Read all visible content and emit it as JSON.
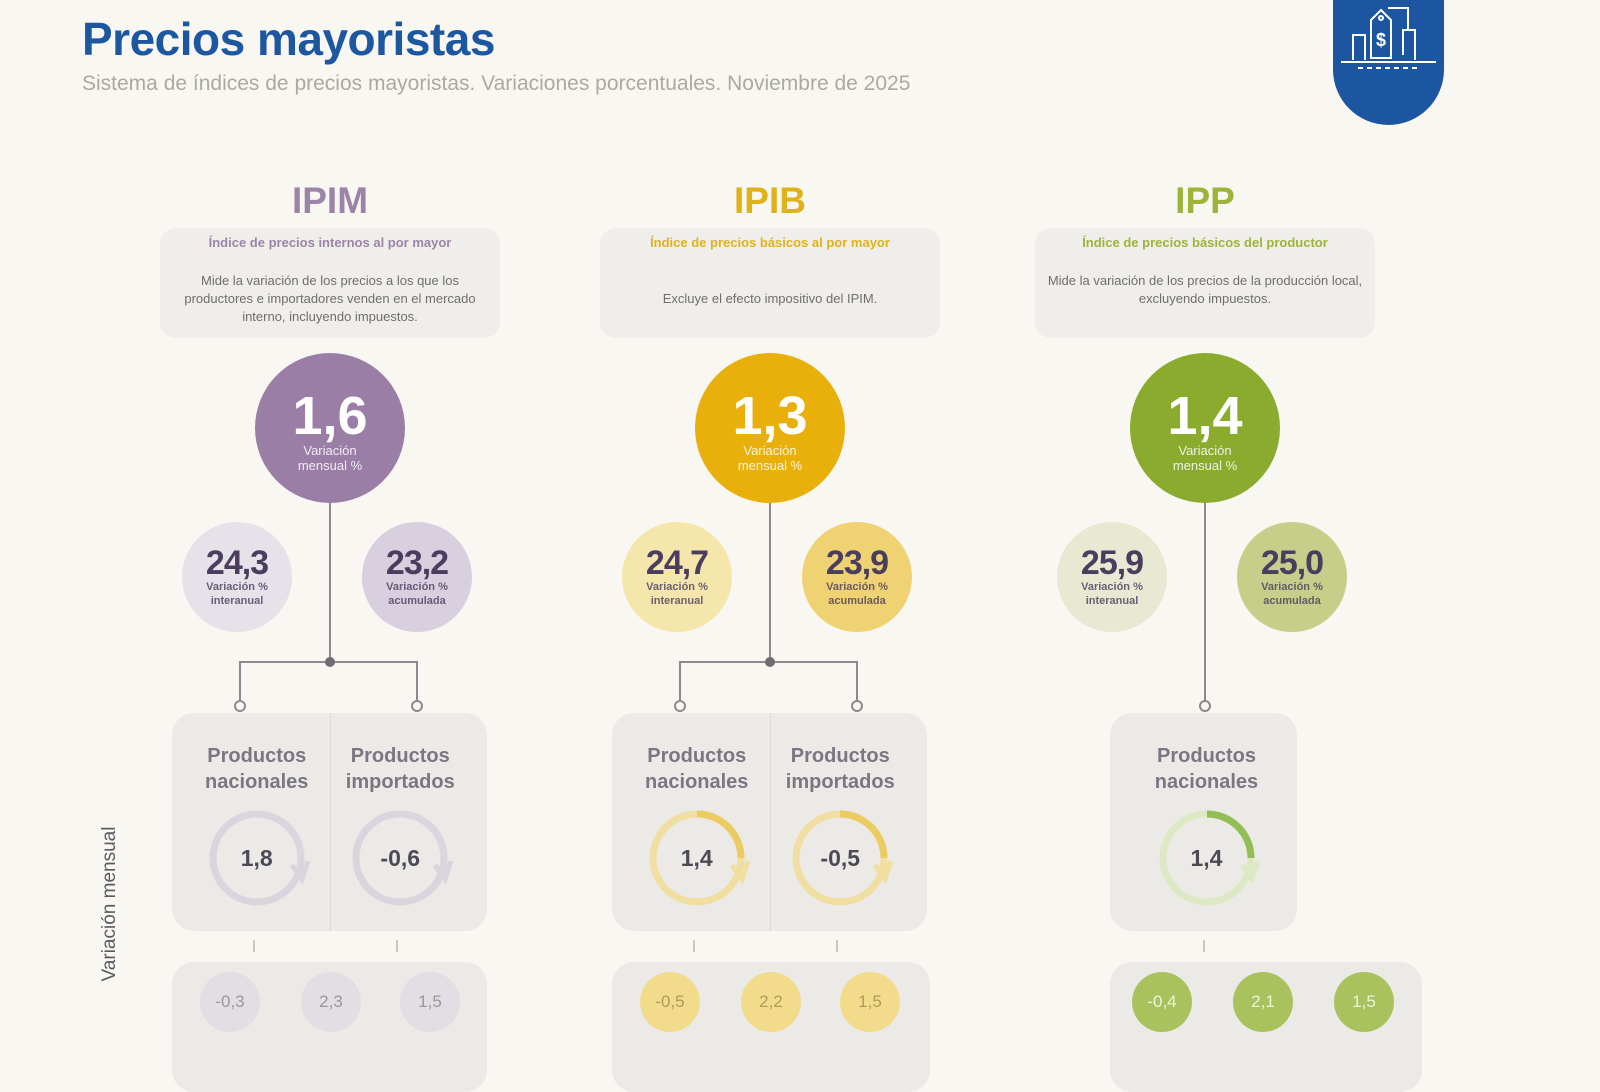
{
  "header": {
    "title": "Precios mayoristas",
    "subtitle": "Sistema de índices de precios mayoristas. Variaciones porcentuales. Noviembre de 2025",
    "logo_icon": "price-tag-dollar-icon",
    "logo_color": "#1d56a0"
  },
  "side_label": "Variación mensual",
  "indices": [
    {
      "key": "ipim",
      "title": "IPIM",
      "subtitle": "Índice de precios internos al por mayor",
      "description": "Mide la variación de los precios a los que los productores e importadores venden en el mercado interno, incluyendo impuestos.",
      "colors": {
        "title": "#9c84a8",
        "main": "#9a7ea6",
        "light": "#e6e2e9",
        "mid": "#d8d0df",
        "text": "#4a3d5e",
        "bottom": "#e1dee4",
        "bottom_text": "#9a96a0",
        "ring": "#d9d5de",
        "ring_accent": "#d9d5de"
      },
      "monthly": {
        "value": "1,6",
        "label": "Variación mensual %"
      },
      "interanual": {
        "value": "24,3",
        "label": "Variación % interanual"
      },
      "acumulada": {
        "value": "23,2",
        "label": "Variación % acumulada"
      },
      "products": [
        {
          "name": "Productos nacionales",
          "value": "1,8"
        },
        {
          "name": "Productos importados",
          "value": "-0,6"
        }
      ],
      "breakdown": [
        "-0,3",
        "2,3",
        "1,5"
      ]
    },
    {
      "key": "ipib",
      "title": "IPIB",
      "subtitle": "Índice de precios básicos al por mayor",
      "description": "Excluye el efecto impositivo del IPIM.",
      "colors": {
        "title": "#e0b21a",
        "main": "#e9b00b",
        "light": "#f5e7ac",
        "mid": "#efd272",
        "text": "#4a3d5e",
        "bottom": "#f2dc8c",
        "bottom_text": "#b09a5a",
        "ring": "#f0dfa0",
        "ring_accent": "#e8c752"
      },
      "monthly": {
        "value": "1,3",
        "label": "Variación mensual %"
      },
      "interanual": {
        "value": "24,7",
        "label": "Variación % interanual"
      },
      "acumulada": {
        "value": "23,9",
        "label": "Variación % acumulada"
      },
      "products": [
        {
          "name": "Productos nacionales",
          "value": "1,4"
        },
        {
          "name": "Productos importados",
          "value": "-0,5"
        }
      ],
      "breakdown": [
        "-0,5",
        "2,2",
        "1,5"
      ]
    },
    {
      "key": "ipp",
      "title": "IPP",
      "subtitle": "Índice de precios básicos del productor",
      "description": "Mide la variación de los precios de la producción local, excluyendo impuestos.",
      "colors": {
        "title": "#9cb43a",
        "main": "#8aab2e",
        "light": "#e7e9d2",
        "mid": "#c5cf89",
        "text": "#4a3d5e",
        "bottom": "#a9c25e",
        "bottom_text": "#eef3dc",
        "ring": "#dde9c4",
        "ring_accent": "#7fb33a"
      },
      "monthly": {
        "value": "1,4",
        "label": "Variación mensual %"
      },
      "interanual": {
        "value": "25,9",
        "label": "Variación % interanual"
      },
      "acumulada": {
        "value": "25,0",
        "label": "Variación % acumulada"
      },
      "products": [
        {
          "name": "Productos nacionales",
          "value": "1,4"
        }
      ],
      "breakdown": [
        "-0,4",
        "2,1",
        "1,5"
      ]
    }
  ]
}
